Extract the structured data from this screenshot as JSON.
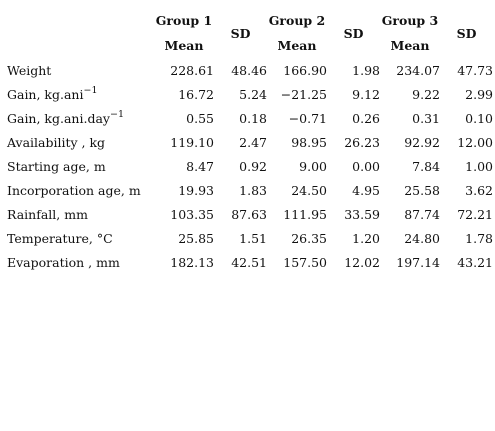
{
  "header": {
    "groups": [
      {
        "group_label": "Group 1",
        "mean_label": "Mean",
        "sd_label": "SD"
      },
      {
        "group_label": "Group 2",
        "mean_label": "Mean",
        "sd_label": "SD"
      },
      {
        "group_label": "Group 3",
        "mean_label": "Mean",
        "sd_label": "SD"
      }
    ]
  },
  "rows": [
    {
      "label": "Weight",
      "sup": "",
      "values": [
        "228.61",
        "48.46",
        "166.90",
        "1.98",
        "234.07",
        "47.73"
      ]
    },
    {
      "label": "Gain, kg.ani",
      "sup": "−1",
      "values": [
        "16.72",
        "5.24",
        "−21.25",
        "9.12",
        "9.22",
        "2.99"
      ]
    },
    {
      "label": "Gain, kg.ani.day",
      "sup": "−1",
      "values": [
        "0.55",
        "0.18",
        "−0.71",
        "0.26",
        "0.31",
        "0.10"
      ]
    },
    {
      "label": "Availability , kg",
      "sup": "",
      "values": [
        "119.10",
        "2.47",
        "98.95",
        "26.23",
        "92.92",
        "12.00"
      ]
    },
    {
      "label": "Starting age, m",
      "sup": "",
      "values": [
        "8.47",
        "0.92",
        "9.00",
        "0.00",
        "7.84",
        "1.00"
      ]
    },
    {
      "label": "Incorporation age, m",
      "sup": "",
      "values": [
        "19.93",
        "1.83",
        "24.50",
        "4.95",
        "25.58",
        "3.62"
      ]
    },
    {
      "label": "Rainfall, mm",
      "sup": "",
      "values": [
        "103.35",
        "87.63",
        "111.95",
        "33.59",
        "87.74",
        "72.21"
      ]
    },
    {
      "label": "Temperature, °C",
      "sup": "",
      "values": [
        "25.85",
        "1.51",
        "26.35",
        "1.20",
        "24.80",
        "1.78"
      ]
    },
    {
      "label": "Evaporation , mm",
      "sup": "",
      "values": [
        "182.13",
        "42.51",
        "157.50",
        "12.02",
        "197.14",
        "43.21"
      ]
    }
  ]
}
